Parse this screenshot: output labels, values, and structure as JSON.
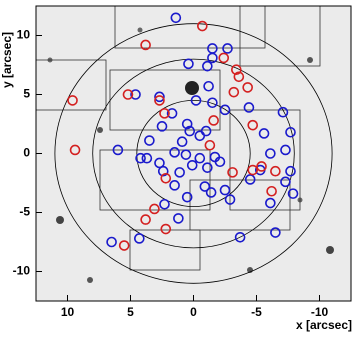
{
  "chart_data": {
    "type": "scatter",
    "x_label": "x [arcsec]",
    "y_label": "y [arcsec]",
    "xlim": [
      12.5,
      -12.5
    ],
    "ylim": [
      -12.5,
      12.5
    ],
    "xticks": [
      10,
      5,
      0,
      -5,
      -10
    ],
    "yticks": [
      -10,
      -5,
      0,
      5,
      10
    ],
    "rings": [
      4.5,
      8,
      11
    ],
    "series": [
      {
        "color": "#1a1acc",
        "x": [
          1.4,
          -2.7,
          -1.5,
          -1.5,
          -1.1,
          0.4,
          -1.2,
          -0.2,
          -1.5,
          -2.5,
          -4.4,
          4.6,
          2.7,
          1.7,
          2.5,
          0.5,
          0.3,
          -1.0,
          -7.1,
          -7.7,
          -5.6,
          -6.1,
          -7.3,
          -0.5,
          0.9,
          3.5,
          6.0,
          4.2,
          1.5,
          0.6,
          0.1,
          -0.5,
          -1.7,
          -2.1,
          -1.1,
          1.1,
          2.4,
          1.5,
          -0.9,
          -1.4,
          -2.5,
          -2.9,
          -5.3,
          -4.5,
          -7.7,
          -7.3,
          -7.9,
          -6.1,
          0.5,
          2.3,
          1.2,
          4.3,
          6.5,
          -3.7,
          -6.5,
          2.7,
          3.7
        ],
        "values": [
          11.5,
          8.9,
          8.9,
          8.1,
          7.4,
          7.6,
          5.7,
          4.5,
          4.3,
          3.7,
          3.9,
          5.0,
          4.8,
          3.4,
          2.3,
          2.5,
          1.9,
          1.9,
          3.5,
          1.8,
          1.7,
          0.0,
          0.3,
          1.5,
          1.0,
          1.1,
          0.3,
          -0.4,
          0.1,
          -0.1,
          -1.0,
          -0.4,
          -0.3,
          -0.7,
          -1.2,
          -1.6,
          -1.5,
          -2.7,
          -2.8,
          -3.3,
          -3.1,
          -3.9,
          -1.4,
          -2.2,
          -1.5,
          -2.4,
          -3.4,
          -4.2,
          -3.7,
          -4.3,
          -5.5,
          -7.2,
          -7.5,
          -7.1,
          -6.7,
          -0.8,
          -0.4
        ]
      },
      {
        "color": "#d42020",
        "x": [
          -0.7,
          3.8,
          -2.4,
          -3.4,
          -3.6,
          9.6,
          5.2,
          2.7,
          2.3,
          -3.2,
          -4.3,
          -1.6,
          -1.3,
          -4.7,
          9.4,
          -5.4,
          -3.1,
          -4.7,
          -6.5,
          3.1,
          3.8,
          2.2,
          5.5,
          -6.2,
          2.2
        ],
        "values": [
          10.8,
          9.2,
          8.1,
          7.1,
          6.5,
          4.5,
          5.0,
          4.5,
          3.4,
          5.2,
          5.6,
          2.8,
          0.7,
          2.4,
          0.3,
          -1.1,
          -1.6,
          -1.4,
          -1.5,
          -4.7,
          -5.6,
          -6.4,
          -7.8,
          -3.2,
          -2.1
        ]
      }
    ]
  }
}
